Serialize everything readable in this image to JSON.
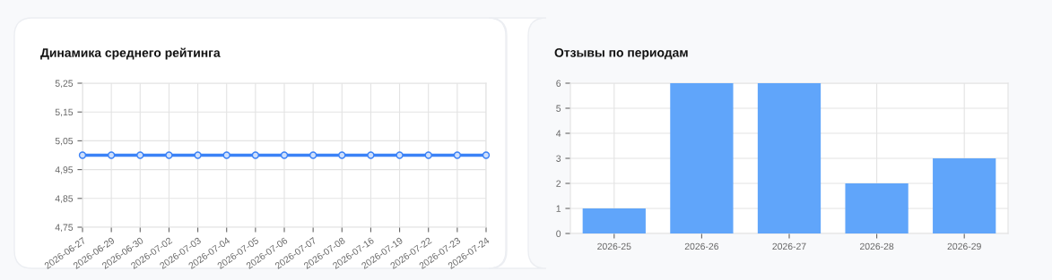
{
  "chart_data": [
    {
      "type": "line",
      "title": "Динамика среднего рейтинга",
      "categories": [
        "2026-06-27",
        "2026-06-29",
        "2026-06-30",
        "2026-07-02",
        "2026-07-03",
        "2026-07-04",
        "2026-07-05",
        "2026-07-06",
        "2026-07-07",
        "2026-07-08",
        "2026-07-16",
        "2026-07-19",
        "2026-07-22",
        "2026-07-23",
        "2026-07-24"
      ],
      "series": [
        {
          "color": "#3b82f6",
          "values": [
            5,
            5,
            5,
            5,
            5,
            5,
            5,
            5,
            5,
            5,
            5,
            5,
            5,
            5,
            5
          ]
        }
      ],
      "ylim": [
        4.75,
        5.25
      ],
      "yticks": [
        {
          "value": 4.75,
          "label": "4,75"
        },
        {
          "value": 4.85,
          "label": "4,85"
        },
        {
          "value": 4.95,
          "label": "4,95"
        },
        {
          "value": 5.05,
          "label": "5,05"
        },
        {
          "value": 5.15,
          "label": "5,15"
        },
        {
          "value": 5.25,
          "label": "5,25"
        }
      ],
      "grid": true,
      "marker": "circle",
      "line_style": "solid"
    },
    {
      "type": "bar",
      "title": "Отзывы по периодам",
      "categories": [
        "2026-25",
        "2026-26",
        "2026-27",
        "2026-28",
        "2026-29"
      ],
      "series": [
        {
          "color": "#60a5fa",
          "values": [
            1,
            6,
            6,
            2,
            3
          ]
        }
      ],
      "ylim": [
        0,
        6
      ],
      "yticks": [
        0,
        1,
        2,
        3,
        4,
        5,
        6
      ],
      "grid": true
    }
  ]
}
